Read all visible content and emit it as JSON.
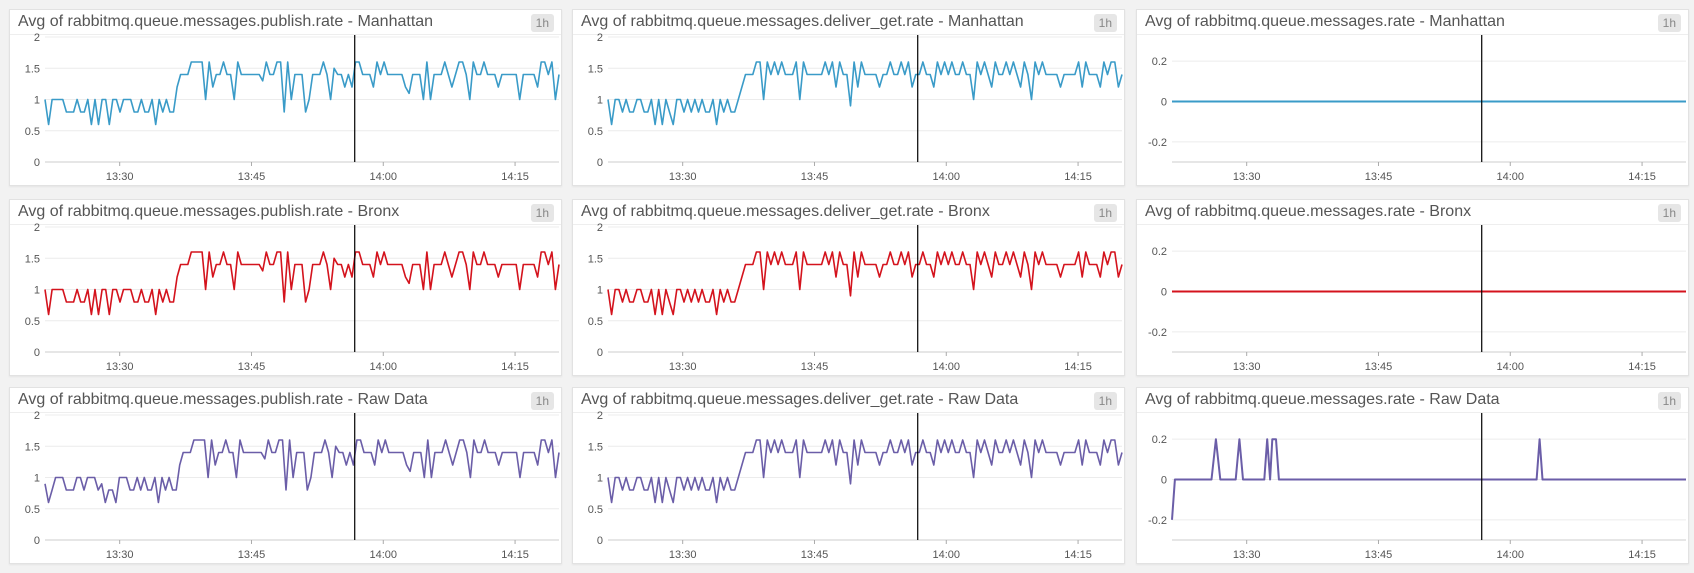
{
  "colors": {
    "manhattan": "#3a9bc8",
    "bronx": "#d4131d",
    "raw": "#6b5ea8",
    "cursor": "#000000",
    "grid": "#ececec"
  },
  "cursor_time": "13:56:45",
  "chart_data": [
    {
      "type": "line",
      "title": "Avg of rabbitmq.queue.messages.publish.rate - Manhattan",
      "badge": "1h",
      "color": "#3a9bc8",
      "ylim": [
        0,
        2
      ],
      "y_ticks": [
        "0",
        "0.5",
        "1",
        "1.5",
        "2"
      ],
      "x_ticks": [
        "13:30",
        "13:45",
        "14:00",
        "14:15"
      ],
      "start": "13:21:30",
      "end": "14:20:00",
      "values": [
        1,
        0.6,
        1,
        1,
        1,
        1,
        0.8,
        0.8,
        0.8,
        1,
        0.8,
        0.8,
        1,
        0.6,
        1,
        0.6,
        1,
        1,
        0.6,
        1,
        1,
        0.8,
        1,
        1,
        1,
        0.8,
        0.8,
        1,
        0.8,
        0.8,
        1,
        0.6,
        1,
        0.8,
        1,
        0.8,
        0.8,
        1.2,
        1.4,
        1.4,
        1.4,
        1.6,
        1.6,
        1.6,
        1.6,
        1,
        1.6,
        1.2,
        1.4,
        1.4,
        1.6,
        1.4,
        1.4,
        1,
        1.6,
        1.4,
        1.4,
        1.4,
        1.4,
        1.4,
        1.4,
        1.3,
        1.6,
        1.4,
        1.4,
        1.6,
        1.6,
        0.8,
        1.6,
        1,
        1.4,
        1.4,
        1.4,
        0.8,
        1,
        1.4,
        1.4,
        1.4,
        1.6,
        1.4,
        1,
        1.5,
        1.4,
        1.4,
        1.2,
        1.4,
        1.2,
        1.6,
        1.6,
        1.4,
        1.4,
        1.4,
        1.2,
        1.6,
        1.4,
        1.6,
        1.4,
        1.4,
        1.4,
        1.4,
        1.4,
        1.2,
        1.1,
        1.4,
        1.4,
        1.4,
        1,
        1.6,
        1,
        1.4,
        1.4,
        1.4,
        1.6,
        1.4,
        1.2,
        1.4,
        1.6,
        1.6,
        1.4,
        1,
        1.6,
        1.4,
        1.4,
        1.6,
        1.4,
        1.4,
        1.4,
        1.2,
        1.4,
        1.4,
        1.4,
        1.4,
        1.4,
        1,
        1.4,
        1.4,
        1.4,
        1.4,
        1.2,
        1.6,
        1.6,
        1.4,
        1.6,
        1,
        1.4
      ]
    },
    {
      "type": "line",
      "title": "Avg of rabbitmq.queue.messages.deliver_get.rate - Manhattan",
      "badge": "1h",
      "color": "#3a9bc8",
      "ylim": [
        0,
        2
      ],
      "y_ticks": [
        "0",
        "0.5",
        "1",
        "1.5",
        "2"
      ],
      "x_ticks": [
        "13:30",
        "13:45",
        "14:00",
        "14:15"
      ],
      "start": "13:21:30",
      "end": "14:20:00",
      "values": [
        1,
        0.6,
        1,
        1,
        0.8,
        1,
        0.8,
        0.8,
        1,
        1,
        0.8,
        0.8,
        1,
        0.6,
        1,
        0.6,
        1,
        0.8,
        0.6,
        1,
        1,
        0.8,
        1,
        0.8,
        1,
        0.8,
        1,
        0.8,
        0.8,
        1,
        0.6,
        1,
        0.8,
        1,
        0.8,
        0.8,
        1,
        1.2,
        1.4,
        1.4,
        1.4,
        1.6,
        1.6,
        1,
        1.6,
        1.4,
        1.6,
        1.4,
        1.6,
        1.4,
        1.4,
        1.4,
        1.6,
        1,
        1.6,
        1.4,
        1.4,
        1.4,
        1.4,
        1.4,
        1.6,
        1.4,
        1.6,
        1.2,
        1.6,
        1.4,
        1.4,
        0.9,
        1.6,
        1.2,
        1.6,
        1.4,
        1.4,
        1.4,
        1.4,
        1.2,
        1.4,
        1.4,
        1.6,
        1.4,
        1.4,
        1.6,
        1.4,
        1.6,
        1.2,
        1.4,
        1.4,
        1.6,
        1.4,
        1.4,
        1.2,
        1.6,
        1.4,
        1.6,
        1.4,
        1.6,
        1.4,
        1.4,
        1.6,
        1.4,
        1.4,
        1,
        1.6,
        1.4,
        1.6,
        1.4,
        1.2,
        1.6,
        1.4,
        1.4,
        1.6,
        1.4,
        1.6,
        1.4,
        1.2,
        1.6,
        1.4,
        1,
        1.6,
        1.4,
        1.6,
        1.4,
        1.4,
        1.4,
        1.4,
        1.2,
        1.4,
        1.4,
        1.4,
        1.4,
        1.6,
        1.2,
        1.6,
        1.4,
        1.4,
        1.4,
        1.2,
        1.6,
        1.4,
        1.6,
        1.6,
        1.2,
        1.4
      ]
    },
    {
      "type": "line",
      "title": "Avg of rabbitmq.queue.messages.rate - Manhattan",
      "badge": "1h",
      "color": "#3a9bc8",
      "ylim": [
        -0.3,
        0.3
      ],
      "y_ticks": [
        "-0.2",
        "0",
        "0.2"
      ],
      "x_ticks": [
        "13:30",
        "13:45",
        "14:00",
        "14:15"
      ],
      "start": "13:21:30",
      "end": "14:20:00",
      "values": [
        0,
        0
      ]
    },
    {
      "type": "line",
      "title": "Avg of rabbitmq.queue.messages.publish.rate - Bronx",
      "badge": "1h",
      "color": "#d4131d",
      "ylim": [
        0,
        2
      ],
      "y_ticks": [
        "0",
        "0.5",
        "1",
        "1.5",
        "2"
      ],
      "x_ticks": [
        "13:30",
        "13:45",
        "14:00",
        "14:15"
      ],
      "start": "13:21:30",
      "end": "14:20:00",
      "values": [
        1,
        0.6,
        1,
        1,
        1,
        1,
        0.8,
        0.8,
        0.8,
        1,
        0.8,
        0.8,
        1,
        0.6,
        1,
        0.6,
        1,
        1,
        0.6,
        1,
        1,
        0.8,
        1,
        1,
        1,
        0.8,
        0.8,
        1,
        0.8,
        0.8,
        1,
        0.6,
        1,
        0.8,
        1,
        0.8,
        0.8,
        1.2,
        1.4,
        1.4,
        1.4,
        1.6,
        1.6,
        1.6,
        1.6,
        1,
        1.6,
        1.2,
        1.4,
        1.4,
        1.6,
        1.4,
        1.4,
        1,
        1.6,
        1.4,
        1.4,
        1.4,
        1.4,
        1.4,
        1.4,
        1.3,
        1.6,
        1.4,
        1.4,
        1.6,
        1.6,
        0.8,
        1.6,
        1,
        1.4,
        1.4,
        1.4,
        0.8,
        1,
        1.4,
        1.4,
        1.4,
        1.6,
        1.4,
        1,
        1.5,
        1.4,
        1.4,
        1.2,
        1.4,
        1.2,
        1.6,
        1.6,
        1.4,
        1.4,
        1.4,
        1.2,
        1.6,
        1.4,
        1.6,
        1.4,
        1.4,
        1.4,
        1.4,
        1.4,
        1.2,
        1.1,
        1.4,
        1.4,
        1.4,
        1,
        1.6,
        1,
        1.4,
        1.4,
        1.4,
        1.6,
        1.4,
        1.2,
        1.4,
        1.6,
        1.6,
        1.4,
        1,
        1.6,
        1.4,
        1.4,
        1.6,
        1.4,
        1.4,
        1.4,
        1.2,
        1.4,
        1.4,
        1.4,
        1.4,
        1.4,
        1,
        1.4,
        1.4,
        1.4,
        1.4,
        1.2,
        1.6,
        1.6,
        1.4,
        1.6,
        1,
        1.4
      ]
    },
    {
      "type": "line",
      "title": "Avg of rabbitmq.queue.messages.deliver_get.rate - Bronx",
      "badge": "1h",
      "color": "#d4131d",
      "ylim": [
        0,
        2
      ],
      "y_ticks": [
        "0",
        "0.5",
        "1",
        "1.5",
        "2"
      ],
      "x_ticks": [
        "13:30",
        "13:45",
        "14:00",
        "14:15"
      ],
      "start": "13:21:30",
      "end": "14:20:00",
      "values": [
        1,
        0.6,
        1,
        1,
        0.8,
        1,
        0.8,
        0.8,
        1,
        1,
        0.8,
        0.8,
        1,
        0.6,
        1,
        0.6,
        1,
        0.8,
        0.6,
        1,
        1,
        0.8,
        1,
        0.8,
        1,
        0.8,
        1,
        0.8,
        0.8,
        1,
        0.6,
        1,
        0.8,
        1,
        0.8,
        0.8,
        1,
        1.2,
        1.4,
        1.4,
        1.4,
        1.6,
        1.6,
        1,
        1.6,
        1.4,
        1.6,
        1.4,
        1.6,
        1.4,
        1.4,
        1.4,
        1.6,
        1,
        1.6,
        1.4,
        1.4,
        1.4,
        1.4,
        1.4,
        1.6,
        1.4,
        1.6,
        1.2,
        1.6,
        1.4,
        1.4,
        0.9,
        1.6,
        1.2,
        1.6,
        1.4,
        1.4,
        1.4,
        1.4,
        1.2,
        1.4,
        1.4,
        1.6,
        1.4,
        1.4,
        1.6,
        1.4,
        1.6,
        1.2,
        1.4,
        1.4,
        1.6,
        1.4,
        1.4,
        1.2,
        1.6,
        1.4,
        1.6,
        1.4,
        1.6,
        1.4,
        1.4,
        1.6,
        1.4,
        1.4,
        1,
        1.6,
        1.4,
        1.6,
        1.4,
        1.2,
        1.6,
        1.4,
        1.4,
        1.6,
        1.4,
        1.6,
        1.4,
        1.2,
        1.6,
        1.4,
        1,
        1.6,
        1.4,
        1.6,
        1.4,
        1.4,
        1.4,
        1.4,
        1.2,
        1.4,
        1.4,
        1.4,
        1.4,
        1.6,
        1.2,
        1.6,
        1.4,
        1.4,
        1.4,
        1.2,
        1.6,
        1.4,
        1.6,
        1.6,
        1.2,
        1.4
      ]
    },
    {
      "type": "line",
      "title": "Avg of rabbitmq.queue.messages.rate - Bronx",
      "badge": "1h",
      "color": "#d4131d",
      "ylim": [
        -0.3,
        0.3
      ],
      "y_ticks": [
        "-0.2",
        "0",
        "0.2"
      ],
      "x_ticks": [
        "13:30",
        "13:45",
        "14:00",
        "14:15"
      ],
      "start": "13:21:30",
      "end": "14:20:00",
      "values": [
        0,
        0
      ]
    },
    {
      "type": "line",
      "title": "Avg of rabbitmq.queue.messages.publish.rate - Raw Data",
      "badge": "1h",
      "color": "#6b5ea8",
      "ylim": [
        0,
        2
      ],
      "y_ticks": [
        "0",
        "0.5",
        "1",
        "1.5",
        "2"
      ],
      "x_ticks": [
        "13:30",
        "13:45",
        "14:00",
        "14:15"
      ],
      "start": "13:21:30",
      "end": "14:20:00",
      "values": [
        0.9,
        0.6,
        0.8,
        1,
        1,
        1,
        0.8,
        0.8,
        0.8,
        1,
        1,
        0.8,
        1,
        1,
        1,
        0.8,
        0.9,
        0.6,
        0.8,
        0.8,
        0.6,
        1,
        1,
        1,
        0.8,
        0.8,
        1,
        0.8,
        1,
        0.8,
        0.8,
        1,
        0.6,
        1,
        0.8,
        1,
        0.8,
        0.8,
        1.2,
        1.4,
        1.4,
        1.4,
        1.6,
        1.6,
        1.6,
        1.6,
        1,
        1.6,
        1.2,
        1.4,
        1.4,
        1.6,
        1.4,
        1.4,
        1,
        1.6,
        1.4,
        1.4,
        1.4,
        1.4,
        1.4,
        1.4,
        1.3,
        1.6,
        1.4,
        1.4,
        1.6,
        1.6,
        0.8,
        1.6,
        1,
        1.4,
        1.4,
        1.4,
        0.8,
        1,
        1.4,
        1.4,
        1.4,
        1.6,
        1.4,
        1,
        1.5,
        1.4,
        1.4,
        1.2,
        1.4,
        1.2,
        1.6,
        1.6,
        1.4,
        1.4,
        1.4,
        1.2,
        1.6,
        1.4,
        1.6,
        1.4,
        1.4,
        1.4,
        1.4,
        1.4,
        1.2,
        1.1,
        1.4,
        1.4,
        1.4,
        1,
        1.6,
        1,
        1.4,
        1.4,
        1.4,
        1.6,
        1.4,
        1.2,
        1.4,
        1.6,
        1.6,
        1.4,
        1,
        1.6,
        1.4,
        1.4,
        1.6,
        1.4,
        1.4,
        1.4,
        1.2,
        1.4,
        1.4,
        1.4,
        1.4,
        1.4,
        1,
        1.4,
        1.4,
        1.4,
        1.4,
        1.2,
        1.6,
        1.6,
        1.4,
        1.6,
        1,
        1.4
      ]
    },
    {
      "type": "line",
      "title": "Avg of rabbitmq.queue.messages.deliver_get.rate - Raw Data",
      "badge": "1h",
      "color": "#6b5ea8",
      "ylim": [
        0,
        2
      ],
      "y_ticks": [
        "0",
        "0.5",
        "1",
        "1.5",
        "2"
      ],
      "x_ticks": [
        "13:30",
        "13:45",
        "14:00",
        "14:15"
      ],
      "start": "13:21:30",
      "end": "14:20:00",
      "values": [
        1,
        0.6,
        1,
        1,
        0.8,
        1,
        0.8,
        0.8,
        1,
        1,
        0.8,
        0.8,
        1,
        0.6,
        1,
        0.6,
        1,
        0.8,
        0.6,
        1,
        1,
        0.8,
        1,
        0.8,
        1,
        0.8,
        1,
        0.8,
        0.8,
        1,
        0.6,
        1,
        0.8,
        1,
        0.8,
        0.8,
        1,
        1.2,
        1.4,
        1.4,
        1.4,
        1.6,
        1.6,
        1,
        1.6,
        1.4,
        1.6,
        1.4,
        1.6,
        1.4,
        1.4,
        1.4,
        1.6,
        1,
        1.6,
        1.4,
        1.4,
        1.4,
        1.4,
        1.4,
        1.6,
        1.4,
        1.6,
        1.2,
        1.6,
        1.4,
        1.4,
        0.9,
        1.6,
        1.2,
        1.6,
        1.4,
        1.4,
        1.4,
        1.4,
        1.2,
        1.4,
        1.4,
        1.6,
        1.4,
        1.4,
        1.6,
        1.4,
        1.6,
        1.2,
        1.4,
        1.4,
        1.6,
        1.4,
        1.4,
        1.2,
        1.6,
        1.4,
        1.6,
        1.4,
        1.6,
        1.4,
        1.4,
        1.6,
        1.4,
        1.4,
        1,
        1.6,
        1.4,
        1.6,
        1.4,
        1.2,
        1.6,
        1.4,
        1.4,
        1.6,
        1.4,
        1.6,
        1.4,
        1.2,
        1.6,
        1.4,
        1,
        1.6,
        1.4,
        1.6,
        1.4,
        1.4,
        1.4,
        1.4,
        1.2,
        1.4,
        1.4,
        1.4,
        1.4,
        1.6,
        1.2,
        1.6,
        1.4,
        1.4,
        1.4,
        1.2,
        1.6,
        1.4,
        1.6,
        1.6,
        1.2,
        1.4
      ]
    },
    {
      "type": "line",
      "title": "Avg of rabbitmq.queue.messages.rate - Raw Data",
      "badge": "1h",
      "color": "#6b5ea8",
      "ylim": [
        -0.3,
        0.3
      ],
      "y_ticks": [
        "-0.2",
        "0",
        "0.2"
      ],
      "x_ticks": [
        "13:30",
        "13:45",
        "14:00",
        "14:15"
      ],
      "points": [
        [
          "13:21:30",
          -0.2
        ],
        [
          "13:21:50",
          0
        ],
        [
          "13:26:00",
          0
        ],
        [
          "13:26:30",
          0.2
        ],
        [
          "13:27:00",
          0
        ],
        [
          "13:28:45",
          0
        ],
        [
          "13:29:10",
          0.2
        ],
        [
          "13:29:35",
          0
        ],
        [
          "13:32:00",
          0
        ],
        [
          "13:32:20",
          0.2
        ],
        [
          "13:32:40",
          0
        ],
        [
          "13:32:55",
          0.2
        ],
        [
          "13:33:20",
          0.2
        ],
        [
          "13:33:40",
          0
        ],
        [
          "14:03:00",
          0
        ],
        [
          "14:03:20",
          0.2
        ],
        [
          "14:03:40",
          0
        ],
        [
          "14:20:00",
          0
        ]
      ]
    }
  ]
}
